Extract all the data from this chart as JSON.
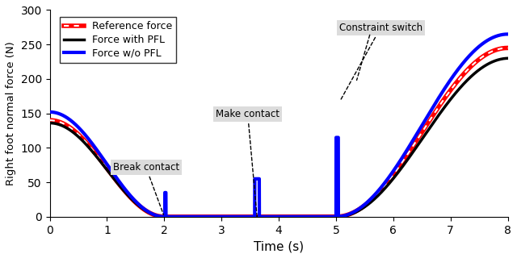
{
  "title": "",
  "xlabel": "Time (s)",
  "ylabel": "Right foot normal force (N)",
  "xlim": [
    0,
    8
  ],
  "ylim": [
    0,
    300
  ],
  "yticks": [
    0,
    50,
    100,
    150,
    200,
    250,
    300
  ],
  "xticks": [
    0,
    1,
    2,
    3,
    4,
    5,
    6,
    7,
    8
  ],
  "background_color": "#ffffff",
  "ref_color": "#ff0000",
  "pfl_color": "#000000",
  "wo_pfl_color": "#0000ff",
  "annotation_box_color": "#dcdcdc"
}
